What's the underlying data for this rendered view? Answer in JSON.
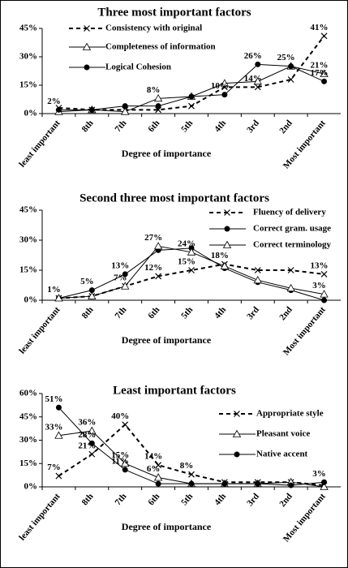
{
  "chart_data": [
    {
      "type": "line",
      "title": "Three most important factors",
      "x_label": "Degree of importance",
      "categories": [
        "least important",
        "8th",
        "7th",
        "6th",
        "5th",
        "4th",
        "3rd",
        "2nd",
        "Most important"
      ],
      "ylim": [
        0,
        45
      ],
      "yticks": [
        {
          "value": 0,
          "label": "0%"
        },
        {
          "value": 15,
          "label": "15%"
        },
        {
          "value": 30,
          "label": "30%"
        },
        {
          "value": 45,
          "label": "45%"
        }
      ],
      "series": [
        {
          "name": "Consistency with original",
          "color": "#000000",
          "marker": "x",
          "dashed": true,
          "values": [
            3,
            2,
            2,
            2,
            4,
            14,
            14,
            18,
            41
          ],
          "value_labels": [
            null,
            null,
            null,
            null,
            null,
            null,
            "14%",
            null,
            "41%"
          ]
        },
        {
          "name": "Completeness of information",
          "color": "#000000",
          "marker": "triangle",
          "dashed": false,
          "values": [
            1,
            2,
            1,
            8,
            9,
            16,
            17,
            25,
            21
          ],
          "value_labels": [
            null,
            null,
            null,
            "8%",
            null,
            null,
            null,
            "25%",
            "21%"
          ]
        },
        {
          "name": "Logical Cohesion",
          "color": "#000000",
          "marker": "circle",
          "dashed": false,
          "values": [
            2,
            2,
            4,
            4,
            9,
            10,
            26,
            25,
            17
          ],
          "value_labels": [
            "2%",
            null,
            null,
            null,
            null,
            "10%",
            "26%",
            null,
            "17%"
          ]
        }
      ]
    },
    {
      "type": "line",
      "title": "Second three most important factors",
      "x_label": "Degree of importance",
      "categories": [
        "least important",
        "8th",
        "7th",
        "6th",
        "5th",
        "4th",
        "3rd",
        "2nd",
        "Most important"
      ],
      "ylim": [
        0,
        45
      ],
      "yticks": [
        {
          "value": 0,
          "label": "0%"
        },
        {
          "value": 15,
          "label": "15%"
        },
        {
          "value": 30,
          "label": "30%"
        },
        {
          "value": 45,
          "label": "45%"
        }
      ],
      "series": [
        {
          "name": "Fluency of delivery",
          "color": "#000000",
          "marker": "x",
          "dashed": true,
          "values": [
            1,
            2,
            7,
            12,
            15,
            18,
            15,
            15,
            13
          ],
          "value_labels": [
            null,
            null,
            "7%",
            "12%",
            "15%",
            "18%",
            null,
            null,
            "13%"
          ]
        },
        {
          "name": "Correct gram. usage",
          "color": "#000000",
          "marker": "circle",
          "dashed": false,
          "values": [
            1,
            5,
            13,
            25,
            26,
            16,
            9,
            5,
            0
          ],
          "value_labels": [
            "1%",
            "5%",
            "13%",
            null,
            null,
            null,
            null,
            null,
            null
          ]
        },
        {
          "name": "Correct terminology",
          "color": "#000000",
          "marker": "triangle",
          "dashed": false,
          "values": [
            1,
            2,
            7,
            27,
            24,
            17,
            10,
            6,
            3
          ],
          "value_labels": [
            null,
            null,
            null,
            "27%",
            "24%",
            null,
            null,
            null,
            "3%"
          ]
        }
      ]
    },
    {
      "type": "line",
      "title": "Least important factors",
      "x_label": "Degree of importance",
      "categories": [
        "least important",
        "8th",
        "7th",
        "6th",
        "5th",
        "4th",
        "3rd",
        "2nd",
        "Most important"
      ],
      "ylim": [
        0,
        60
      ],
      "yticks": [
        {
          "value": 0,
          "label": "0%"
        },
        {
          "value": 15,
          "label": "15%"
        },
        {
          "value": 30,
          "label": "30%"
        },
        {
          "value": 45,
          "label": "45%"
        },
        {
          "value": 60,
          "label": "60%"
        }
      ],
      "series": [
        {
          "name": "Appropriate style",
          "color": "#000000",
          "marker": "x",
          "dashed": true,
          "values": [
            7,
            21,
            40,
            14,
            8,
            3,
            3,
            3,
            1
          ],
          "value_labels": [
            "7%",
            "21%",
            "40%",
            "14%",
            "8%",
            null,
            null,
            null,
            null
          ]
        },
        {
          "name": "Pleasant voice",
          "color": "#000000",
          "marker": "triangle",
          "dashed": false,
          "values": [
            33,
            36,
            15,
            6,
            2,
            2,
            2,
            3,
            0
          ],
          "value_labels": [
            "33%",
            "36%",
            "15%",
            "6%",
            null,
            null,
            null,
            null,
            null
          ]
        },
        {
          "name": "Native accent",
          "color": "#000000",
          "marker": "circle",
          "dashed": false,
          "values": [
            51,
            28,
            11,
            2,
            2,
            2,
            2,
            1,
            3
          ],
          "value_labels": [
            "51%",
            "28%",
            "11%",
            null,
            null,
            null,
            null,
            null,
            "3%"
          ]
        }
      ]
    }
  ]
}
